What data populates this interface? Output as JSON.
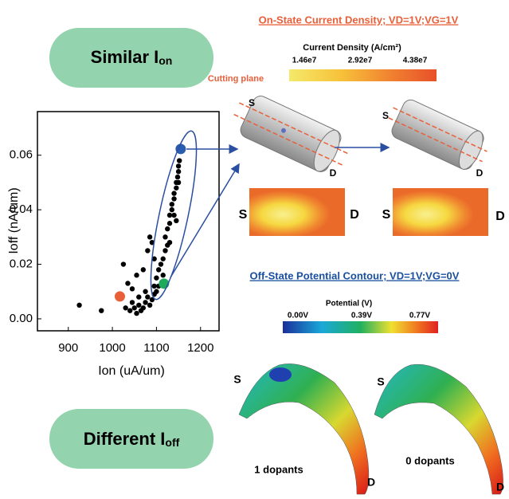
{
  "chart_data": {
    "type": "scatter",
    "xlabel": "Ion (uA/um)",
    "ylabel": "Ioff (nA/um)",
    "xlim": [
      830,
      1242
    ],
    "ylim": [
      -0.0044,
      0.076
    ],
    "xticks": [
      900,
      1000,
      1100,
      1200
    ],
    "yticks": [
      {
        "value": 0,
        "label": "0.00"
      },
      {
        "value": 0.02,
        "label": "0.02"
      },
      {
        "value": 0.04,
        "label": "0.04"
      },
      {
        "value": 0.06,
        "label": "0.06"
      }
    ],
    "series": [
      {
        "color": "#000000",
        "x": [
          925,
          975,
          1030,
          1040,
          1045,
          1050,
          1055,
          1060,
          1065,
          1070,
          1075,
          1080,
          1085,
          1090,
          1095,
          1100,
          1045,
          1060,
          1025,
          1035,
          1055,
          1070,
          1080,
          1085,
          1090,
          1095,
          1100,
          1105,
          1110,
          1115,
          1120,
          1125,
          1120,
          1125,
          1130,
          1130,
          1135,
          1135,
          1140,
          1140,
          1145,
          1145,
          1148,
          1150,
          1150,
          1152,
          1140,
          1130,
          1115,
          1105,
          1095,
          1075,
          1150,
          1145
        ],
        "values": [
          0.005,
          0.003,
          0.004,
          0.003,
          0.006,
          0.004,
          0.002,
          0.005,
          0.003,
          0.004,
          0.006,
          0.008,
          0.005,
          0.007,
          0.009,
          0.01,
          0.011,
          0.008,
          0.02,
          0.013,
          0.016,
          0.018,
          0.025,
          0.03,
          0.028,
          0.022,
          0.015,
          0.018,
          0.02,
          0.022,
          0.025,
          0.027,
          0.03,
          0.033,
          0.035,
          0.038,
          0.04,
          0.042,
          0.044,
          0.046,
          0.048,
          0.05,
          0.052,
          0.054,
          0.056,
          0.058,
          0.038,
          0.028,
          0.016,
          0.012,
          0.012,
          0.01,
          0.05,
          0.036
        ]
      },
      {
        "color": "#2a5db0",
        "x": [
          1155
        ],
        "values": [
          0.0623
        ]
      },
      {
        "color": "#e8603a",
        "x": [
          1017
        ],
        "values": [
          0.0082
        ]
      },
      {
        "color": "#1daa5a",
        "x": [
          1117
        ],
        "values": [
          0.0129
        ]
      }
    ]
  },
  "similar": {
    "text": "Similar I",
    "subscript": "on"
  },
  "different": {
    "text": "Different I",
    "subscript": "off"
  },
  "on_state": {
    "title": "On-State Current Density; VD=1V;VG=1V",
    "colorbar_title": "Current Density (A/cm²)",
    "colorbar_labels": [
      "1.46e7",
      "2.92e7",
      "4.38e7"
    ],
    "cutting_plane": "Cutting plane",
    "source_labels": [
      "S",
      "S",
      "S",
      "S"
    ],
    "drain_labels": [
      "D",
      "D",
      "D",
      "D"
    ]
  },
  "off_state": {
    "title": "Off-State Potential Contour; VD=1V;VG=0V",
    "colorbar_title": "Potential (V)",
    "colorbar_labels": [
      "0.00V",
      "0.39V",
      "0.77V"
    ],
    "source_labels": [
      "S",
      "S"
    ],
    "drain_labels": [
      "D",
      "D"
    ],
    "captions": [
      "1 dopants",
      "0 dopants"
    ]
  }
}
